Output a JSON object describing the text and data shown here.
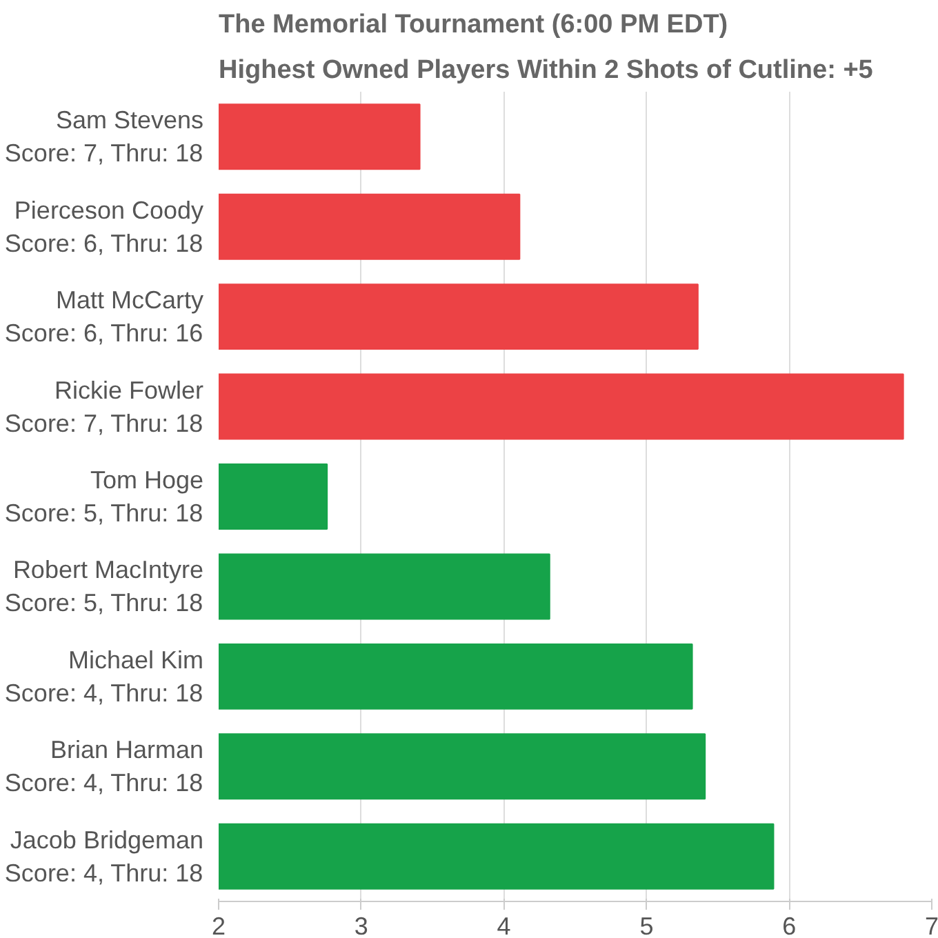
{
  "chart_data": {
    "type": "bar",
    "orientation": "horizontal",
    "title": "The Memorial Tournament (6:00 PM EDT)",
    "subtitle": "Highest Owned Players Within 2 Shots of Cutline: +5",
    "categories": [
      "Sam Stevens\nScore: 7, Thru: 18",
      "Pierceson Coody\nScore: 6, Thru: 18",
      "Matt McCarty\nScore: 6, Thru: 16",
      "Rickie Fowler\nScore: 7, Thru: 18",
      "Tom Hoge\nScore: 5, Thru: 18",
      "Robert MacIntyre\nScore: 5, Thru: 18",
      "Michael Kim\nScore: 4, Thru: 18",
      "Brian Harman\nScore: 4, Thru: 18",
      "Jacob Bridgeman\nScore: 4, Thru: 18"
    ],
    "values": [
      3.41,
      4.11,
      5.36,
      6.8,
      2.76,
      4.32,
      5.32,
      5.41,
      5.89
    ],
    "colors": [
      "#ec4245",
      "#ec4245",
      "#ec4245",
      "#ec4245",
      "#16a34a",
      "#16a34a",
      "#16a34a",
      "#16a34a",
      "#16a34a"
    ],
    "xlim": [
      2,
      7
    ],
    "xticks": [
      2,
      3,
      4,
      5,
      6,
      7
    ],
    "grid": "x"
  }
}
